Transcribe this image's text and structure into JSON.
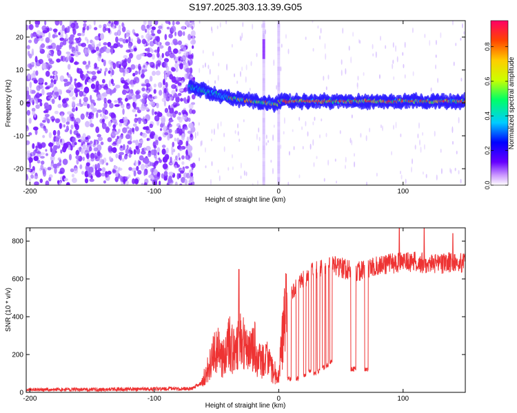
{
  "title": "S197.2025.303.13.39.G05",
  "chart_data": [
    {
      "type": "heatmap",
      "title": "S197.2025.303.13.39.G05",
      "xlabel": "Height of straight line (km)",
      "ylabel": "Frequency (Hz)",
      "xlim": [
        -203,
        150
      ],
      "ylim": [
        -25,
        25
      ],
      "x_ticks": [
        -200,
        -100,
        0,
        100
      ],
      "x_tick_labels": [
        "-200",
        "-100",
        "0",
        "100"
      ],
      "y_ticks": [
        -20,
        -10,
        0,
        10,
        20
      ],
      "y_tick_labels": [
        "-20",
        "-10",
        "0",
        "10",
        "20"
      ],
      "colorbar": {
        "label": "Normalized spectral amplitude",
        "range": [
          0,
          0.95
        ],
        "ticks": [
          0,
          0.2,
          0.4,
          0.6,
          0.8
        ],
        "tick_labels": [
          "0.0",
          "0.2",
          "0.4",
          "0.6",
          "0.8"
        ],
        "colormap": [
          "#ffffff",
          "#cc99ff",
          "#6600ff",
          "#0000ff",
          "#00ccff",
          "#00ff66",
          "#ccff00",
          "#ffcc00",
          "#ff4400",
          "#ff0066"
        ]
      },
      "features": {
        "noise_region_x": [
          -203,
          -72
        ],
        "ridge_start_freq_hz": 5,
        "ridge_end_freq_hz": 0.5,
        "vertical_streaks_km": [
          -12,
          0
        ]
      }
    },
    {
      "type": "line",
      "xlabel": "Height of straight line (km)",
      "ylabel": "SNR (10 * v/v)",
      "xlim": [
        -203,
        150
      ],
      "ylim": [
        0,
        870
      ],
      "x_ticks": [
        -200,
        -100,
        0,
        100
      ],
      "x_tick_labels": [
        "-200",
        "-100",
        "0",
        "100"
      ],
      "y_ticks": [
        0,
        200,
        400,
        600,
        800
      ],
      "y_tick_labels": [
        "0",
        "200",
        "400",
        "600",
        "800"
      ],
      "color": "#ee3333",
      "series": [
        {
          "name": "SNR",
          "x": [
            -203,
            -150,
            -100,
            -70,
            -62,
            -55,
            -50,
            -45,
            -40,
            -35,
            -30,
            -25,
            -20,
            -15,
            -10,
            -5,
            0,
            2,
            5,
            8,
            10,
            15,
            20,
            25,
            30,
            35,
            40,
            45,
            50,
            55,
            60,
            62,
            65,
            70,
            72,
            75,
            80,
            90,
            100,
            110,
            120,
            130,
            140,
            150
          ],
          "values": [
            15,
            15,
            18,
            20,
            50,
            150,
            230,
            180,
            260,
            200,
            280,
            200,
            250,
            160,
            180,
            120,
            80,
            230,
            400,
            450,
            500,
            560,
            590,
            620,
            650,
            660,
            670,
            670,
            660,
            650,
            640,
            630,
            640,
            650,
            660,
            660,
            670,
            680,
            690,
            690,
            680,
            680,
            690,
            680
          ]
        }
      ],
      "dropouts": [
        {
          "x": [
            7,
            10
          ],
          "min": 60
        },
        {
          "x": [
            14,
            16
          ],
          "min": 60
        },
        {
          "x": [
            20,
            22
          ],
          "min": 80
        },
        {
          "x": [
            24,
            26
          ],
          "min": 100
        },
        {
          "x": [
            28,
            30
          ],
          "min": 90
        },
        {
          "x": [
            31,
            33
          ],
          "min": 100
        },
        {
          "x": [
            35,
            37
          ],
          "min": 120
        },
        {
          "x": [
            38,
            40
          ],
          "min": 130
        },
        {
          "x": [
            41,
            43
          ],
          "min": 150
        },
        {
          "x": [
            58,
            62
          ],
          "min": 110
        },
        {
          "x": [
            69,
            72
          ],
          "min": 110
        }
      ],
      "spikes": [
        {
          "x": -40,
          "value": 320
        },
        {
          "x": -32,
          "value": 650
        },
        {
          "x": -29,
          "value": 280
        },
        {
          "x": -22,
          "value": 310
        },
        {
          "x": -10,
          "value": 250
        },
        {
          "x": 97,
          "value": 870
        },
        {
          "x": 117,
          "value": 870
        },
        {
          "x": 140,
          "value": 840
        }
      ]
    }
  ]
}
